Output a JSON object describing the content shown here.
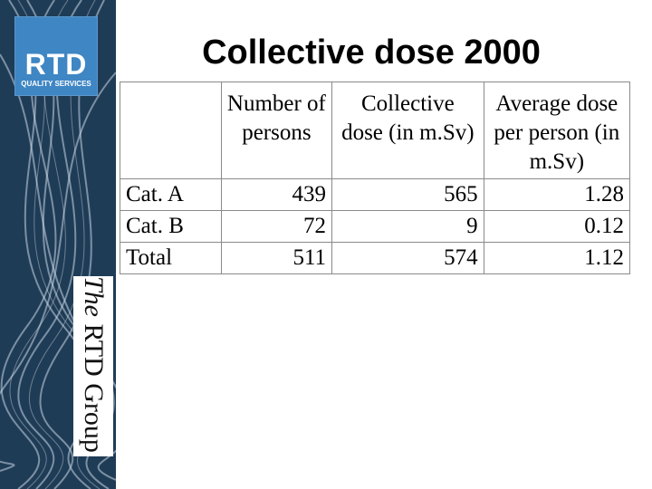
{
  "brand": {
    "logo_text": "RTD",
    "logo_subtext": "QUALITY SERVICES",
    "vertical_prefix": "The",
    "vertical_name": " RTD Group",
    "colors": {
      "sidebar": "#1f3c57",
      "logo": "#3f86c4"
    }
  },
  "slide": {
    "title": "Collective dose 2000"
  },
  "table": {
    "headers": [
      "",
      "Number of persons",
      "Collective dose (in m.Sv)",
      "Average dose per person (in m.Sv)"
    ],
    "rows": [
      {
        "label": "Cat. A",
        "persons": "439",
        "collective": "565",
        "average": "1.28"
      },
      {
        "label": "Cat. B",
        "persons": "72",
        "collective": "9",
        "average": "0.12"
      },
      {
        "label": "Total",
        "persons": "511",
        "collective": "574",
        "average": "1.12"
      }
    ]
  }
}
